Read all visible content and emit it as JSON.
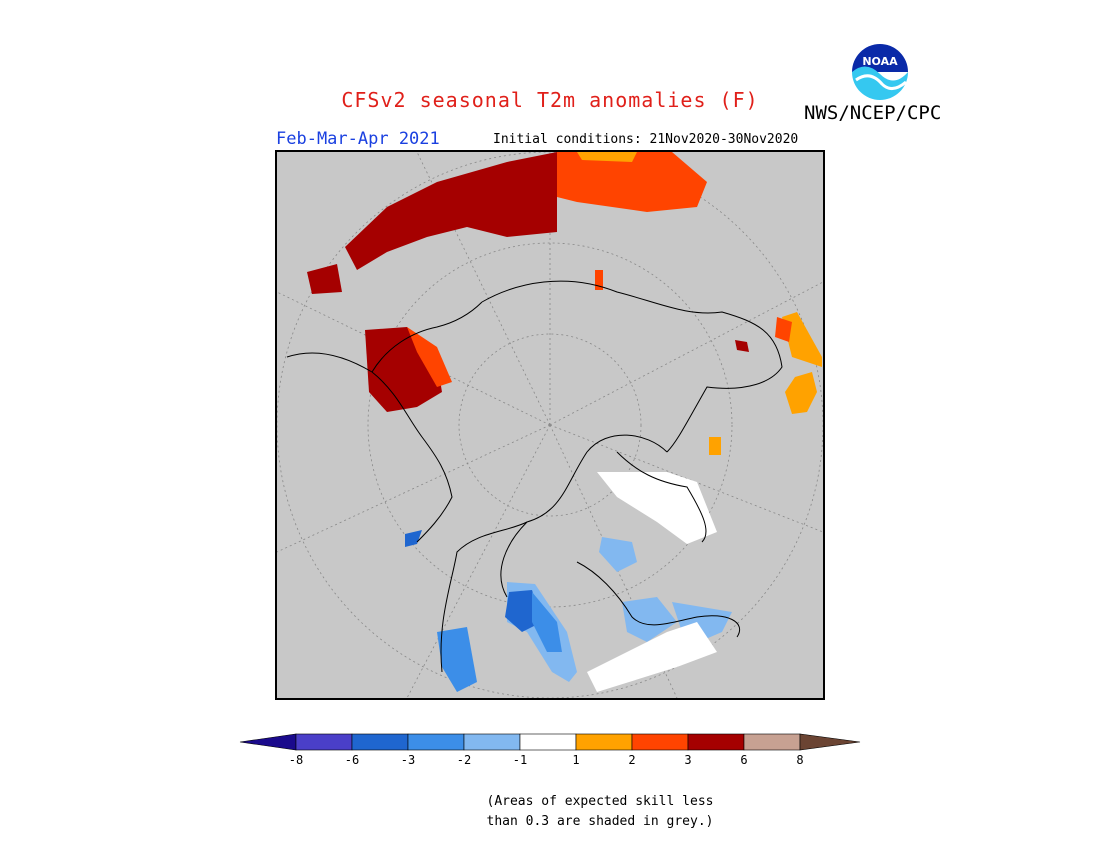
{
  "header": {
    "title": "CFSv2 seasonal T2m anomalies (F)",
    "agency": "NWS/NCEP/CPC",
    "logo_text": "NOAA",
    "season": "Feb-Mar-Apr 2021",
    "initial_conditions": "Initial conditions: 21Nov2020-30Nov2020"
  },
  "colors": {
    "title": "#e0201a",
    "season": "#1a40e0",
    "no_skill_grey": "#c8c8c8"
  },
  "colorbar": {
    "ticks": [
      "-8",
      "-6",
      "-3",
      "-2",
      "-1",
      "1",
      "2",
      "3",
      "6",
      "8"
    ],
    "bins": [
      {
        "range": "< -8",
        "color": "#1a0a8c"
      },
      {
        "range": "-8 to -6",
        "color": "#4a3fc8"
      },
      {
        "range": "-6 to -3",
        "color": "#1f66cf"
      },
      {
        "range": "-3 to -2",
        "color": "#3c8ee8"
      },
      {
        "range": "-2 to -1",
        "color": "#82b8f0"
      },
      {
        "range": "-1 to 1",
        "color": "#ffffff"
      },
      {
        "range": "1 to 2",
        "color": "#ffa200"
      },
      {
        "range": "2 to 3",
        "color": "#ff4400"
      },
      {
        "range": "3 to 6",
        "color": "#a50000"
      },
      {
        "range": "6 to 8",
        "color": "#c7a192"
      },
      {
        "range": "> 8",
        "color": "#6b4433"
      }
    ]
  },
  "note": {
    "line1": "(Areas of expected skill less",
    "line2": "than 0.3 are shaded in grey.)"
  }
}
